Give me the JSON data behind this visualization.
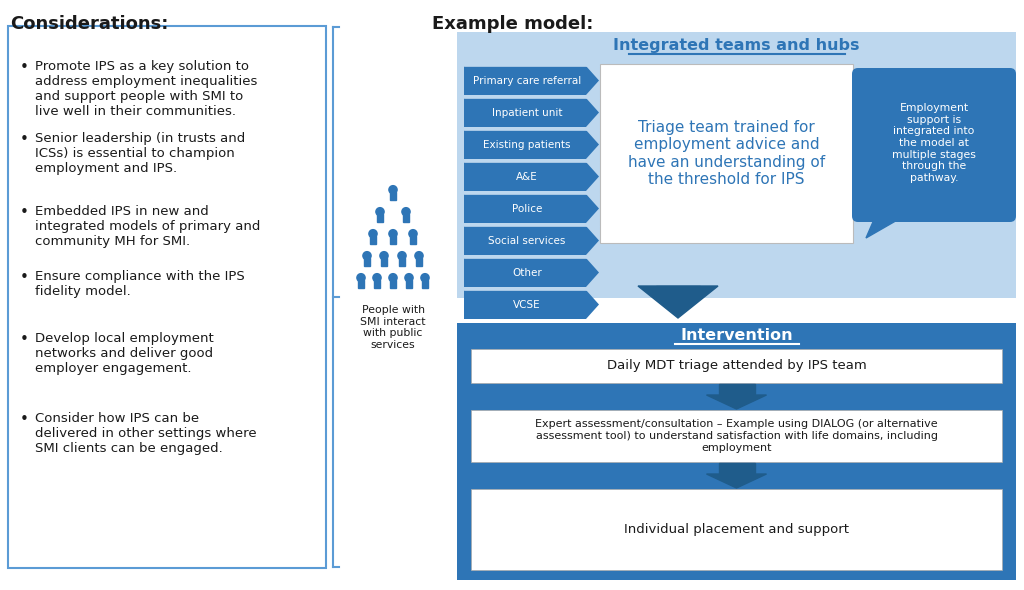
{
  "title_left": "Considerations:",
  "title_right": "Example model:",
  "bg_color": "#ffffff",
  "left_box_border": "#5B9BD5",
  "considerations": [
    "Promote IPS as a key solution to\naddress employment inequalities\nand support people with SMI to\nlive well in their communities.",
    "Senior leadership (in trusts and\nICSs) is essential to champion\nemployment and IPS.",
    "Embedded IPS in new and\nintegrated models of primary and\ncommunity MH for SMI.",
    "Ensure compliance with the IPS\nfidelity model.",
    "Develop local employment\nnetworks and deliver good\nemployer engagement.",
    "Consider how IPS can be\ndelivered in other settings where\nSMI clients can be engaged."
  ],
  "people_label": "People with\nSMI interact\nwith public\nservices",
  "people_color": "#2E75B6",
  "pathway_labels": [
    "Primary care referral",
    "Inpatient unit",
    "Existing patients",
    "A&E",
    "Police",
    "Social services",
    "Other",
    "VCSE"
  ],
  "pathway_color": "#2E75B6",
  "hub_bg_color": "#BDD7EE",
  "hub_title": "Integrated teams and hubs",
  "hub_title_color": "#2E75B6",
  "triage_text": "Triage team trained for\nemployment advice and\nhave an understanding of\nthe threshold for IPS",
  "triage_bg": "#ffffff",
  "triage_text_color": "#2E75B6",
  "bubble_text": "Employment\nsupport is\nintegrated into\nthe model at\nmultiple stages\nthrough the\npathway.",
  "bubble_bg": "#2E75B6",
  "bubble_text_color": "#ffffff",
  "intervention_bg": "#2E75B6",
  "intervention_title": "Intervention",
  "intervention_title_color": "#ffffff",
  "intervention_box1": "Daily MDT triage attended by IPS team",
  "intervention_box2": "Expert assessment/consultation – Example using DIALOG (or alternative\nassessment tool) to understand satisfaction with life domains, including\nemployment",
  "intervention_box3": "Individual placement and support",
  "arrow_color": "#2E75B6",
  "dark_arrow_color": "#1F5C8B",
  "text_dark": "#1a1a1a",
  "white": "#ffffff"
}
